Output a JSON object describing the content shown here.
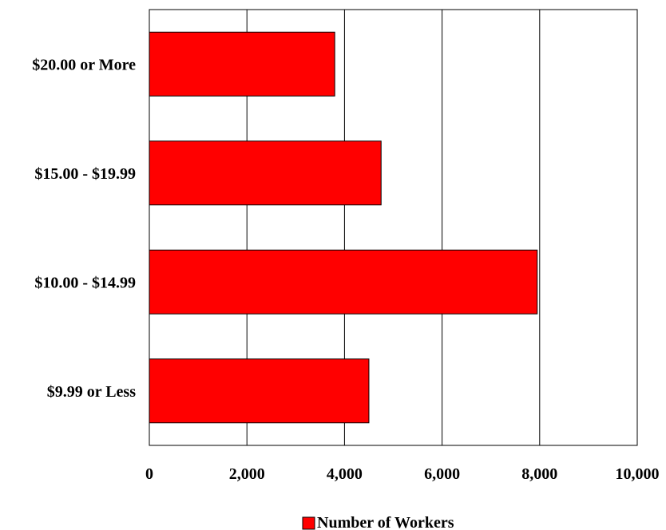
{
  "chart_data": {
    "type": "bar",
    "orientation": "horizontal",
    "categories": [
      "$20.00 or More",
      "$15.00 - $19.99",
      "$10.00 - $14.99",
      "$9.99 or Less"
    ],
    "series": [
      {
        "name": "Number of Workers",
        "values": [
          3800,
          4750,
          7950,
          4500
        ],
        "color": "#ff0000"
      }
    ],
    "xlim": [
      0,
      10000
    ],
    "xticks": [
      0,
      2000,
      4000,
      6000,
      8000,
      10000
    ],
    "xtick_labels": [
      "0",
      "2,000",
      "4,000",
      "6,000",
      "8,000",
      "10,000"
    ],
    "grid": "vertical",
    "legend": "bottom-center"
  }
}
